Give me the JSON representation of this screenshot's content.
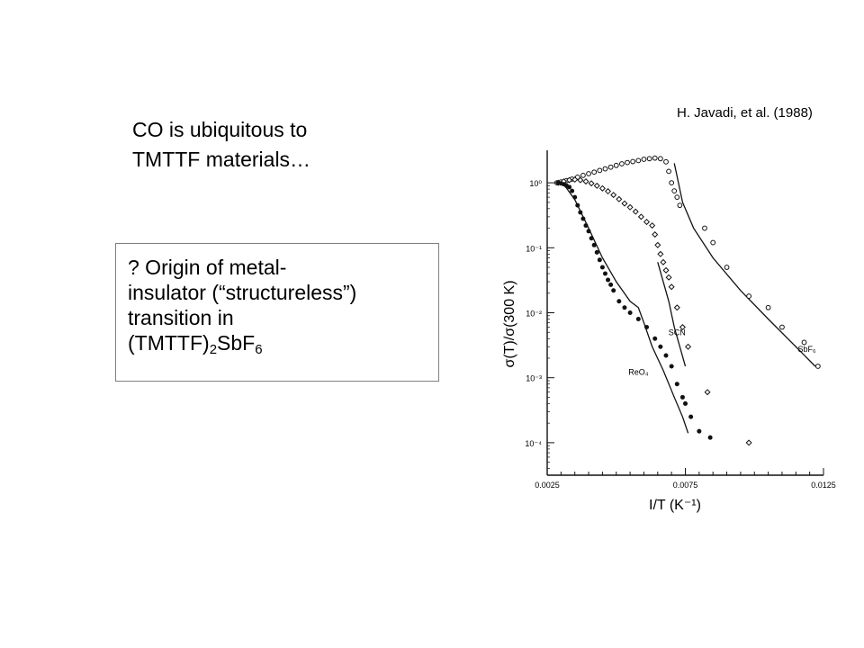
{
  "citation": "H. Javadi, et al. (1988)",
  "heading": {
    "line1": "CO is ubiquitous to",
    "line2": "TMTTF materials…"
  },
  "question": {
    "line1": "? Origin of  metal-",
    "line2": "insulator (“structureless”)",
    "line3": "transition in",
    "line4_pre": "(TMTTF)",
    "line4_sub1": "2",
    "line4_mid": "SbF",
    "line4_sub2": "6"
  },
  "chart_data": {
    "type": "scatter",
    "title": "",
    "xlabel": "I/T (K⁻¹)",
    "ylabel": "σ(T)/σ(300 K)",
    "xlim": [
      0.0025,
      0.0125
    ],
    "ylim_log10": [
      -4.5,
      0.5
    ],
    "yscale": "log",
    "x_ticks": [
      "0.0025",
      "0.0075",
      "0.0125"
    ],
    "y_ticks": [
      "10⁰",
      "10⁻¹",
      "10⁻²",
      "10⁻³",
      "10⁻⁴"
    ],
    "series": [
      {
        "name": "SbF₆",
        "marker": "open-circle",
        "points": [
          [
            0.00285,
            1.0
          ],
          [
            0.003,
            1.03
          ],
          [
            0.0032,
            1.08
          ],
          [
            0.0034,
            1.14
          ],
          [
            0.0036,
            1.22
          ],
          [
            0.0038,
            1.3
          ],
          [
            0.004,
            1.38
          ],
          [
            0.0042,
            1.46
          ],
          [
            0.0044,
            1.55
          ],
          [
            0.0046,
            1.64
          ],
          [
            0.0048,
            1.74
          ],
          [
            0.005,
            1.85
          ],
          [
            0.0052,
            1.96
          ],
          [
            0.0054,
            2.05
          ],
          [
            0.0056,
            2.12
          ],
          [
            0.0058,
            2.2
          ],
          [
            0.006,
            2.3
          ],
          [
            0.0062,
            2.35
          ],
          [
            0.0064,
            2.4
          ],
          [
            0.0066,
            2.35
          ],
          [
            0.0068,
            2.1
          ],
          [
            0.0069,
            1.5
          ],
          [
            0.007,
            1.0
          ],
          [
            0.0071,
            0.75
          ],
          [
            0.0072,
            0.6
          ],
          [
            0.0073,
            0.45
          ],
          [
            0.0082,
            0.2
          ],
          [
            0.0085,
            0.12
          ],
          [
            0.009,
            0.05
          ],
          [
            0.0098,
            0.018
          ],
          [
            0.0105,
            0.012
          ],
          [
            0.011,
            0.006
          ],
          [
            0.0118,
            0.0035
          ],
          [
            0.0123,
            0.0015
          ]
        ],
        "fit": [
          [
            0.0071,
            2.0
          ],
          [
            0.0074,
            0.5
          ],
          [
            0.0078,
            0.2
          ],
          [
            0.0085,
            0.07
          ],
          [
            0.0095,
            0.022
          ],
          [
            0.0105,
            0.008
          ],
          [
            0.0115,
            0.003
          ],
          [
            0.0122,
            0.0015
          ]
        ]
      },
      {
        "name": "SCN",
        "marker": "open-diamond",
        "points": [
          [
            0.0029,
            1.0
          ],
          [
            0.0031,
            1.05
          ],
          [
            0.0033,
            1.1
          ],
          [
            0.0035,
            1.12
          ],
          [
            0.0037,
            1.1
          ],
          [
            0.0039,
            1.05
          ],
          [
            0.0041,
            0.98
          ],
          [
            0.0043,
            0.9
          ],
          [
            0.0045,
            0.82
          ],
          [
            0.0047,
            0.74
          ],
          [
            0.0049,
            0.65
          ],
          [
            0.0051,
            0.56
          ],
          [
            0.0053,
            0.48
          ],
          [
            0.0055,
            0.42
          ],
          [
            0.0057,
            0.36
          ],
          [
            0.0059,
            0.3
          ],
          [
            0.0061,
            0.25
          ],
          [
            0.0063,
            0.22
          ],
          [
            0.0064,
            0.16
          ],
          [
            0.0065,
            0.11
          ],
          [
            0.0066,
            0.08
          ],
          [
            0.0067,
            0.06
          ],
          [
            0.0068,
            0.045
          ],
          [
            0.0069,
            0.035
          ],
          [
            0.007,
            0.025
          ],
          [
            0.0072,
            0.012
          ],
          [
            0.0074,
            0.006
          ],
          [
            0.0076,
            0.003
          ],
          [
            0.0083,
            0.0006
          ],
          [
            0.0098,
            0.0001
          ]
        ],
        "fit": [
          [
            0.0065,
            0.06
          ],
          [
            0.0067,
            0.03
          ],
          [
            0.0069,
            0.015
          ],
          [
            0.0071,
            0.006
          ],
          [
            0.0073,
            0.003
          ],
          [
            0.0075,
            0.0015
          ]
        ]
      },
      {
        "name": "ReO₄",
        "marker": "filled-circle",
        "points": [
          [
            0.0029,
            1.0
          ],
          [
            0.003,
            0.98
          ],
          [
            0.0031,
            0.95
          ],
          [
            0.0032,
            0.9
          ],
          [
            0.0033,
            0.86
          ],
          [
            0.0034,
            0.75
          ],
          [
            0.0035,
            0.6
          ],
          [
            0.0036,
            0.45
          ],
          [
            0.0037,
            0.35
          ],
          [
            0.0038,
            0.28
          ],
          [
            0.0039,
            0.22
          ],
          [
            0.004,
            0.18
          ],
          [
            0.0041,
            0.14
          ],
          [
            0.0042,
            0.11
          ],
          [
            0.0043,
            0.085
          ],
          [
            0.0044,
            0.065
          ],
          [
            0.0045,
            0.05
          ],
          [
            0.0046,
            0.04
          ],
          [
            0.0047,
            0.032
          ],
          [
            0.0048,
            0.027
          ],
          [
            0.0049,
            0.022
          ],
          [
            0.0051,
            0.015
          ],
          [
            0.0053,
            0.012
          ],
          [
            0.0055,
            0.01
          ],
          [
            0.0058,
            0.008
          ],
          [
            0.0061,
            0.006
          ],
          [
            0.0064,
            0.004
          ],
          [
            0.0066,
            0.003
          ],
          [
            0.0068,
            0.0022
          ],
          [
            0.007,
            0.0015
          ],
          [
            0.0072,
            0.0008
          ],
          [
            0.0074,
            0.0005
          ],
          [
            0.0075,
            0.0004
          ],
          [
            0.0077,
            0.00025
          ],
          [
            0.008,
            0.00015
          ],
          [
            0.0084,
            0.00012
          ]
        ],
        "fit": [
          [
            0.0031,
            0.95
          ],
          [
            0.0035,
            0.55
          ],
          [
            0.004,
            0.2
          ],
          [
            0.0045,
            0.07
          ],
          [
            0.005,
            0.03
          ],
          [
            0.0055,
            0.015
          ],
          [
            0.0058,
            0.012
          ],
          [
            0.006,
            0.007
          ],
          [
            0.0063,
            0.003
          ],
          [
            0.0067,
            0.0013
          ],
          [
            0.0071,
            0.0005
          ],
          [
            0.0074,
            0.00025
          ],
          [
            0.0076,
            0.00014
          ]
        ]
      }
    ],
    "legend": "inline labels near curves"
  }
}
